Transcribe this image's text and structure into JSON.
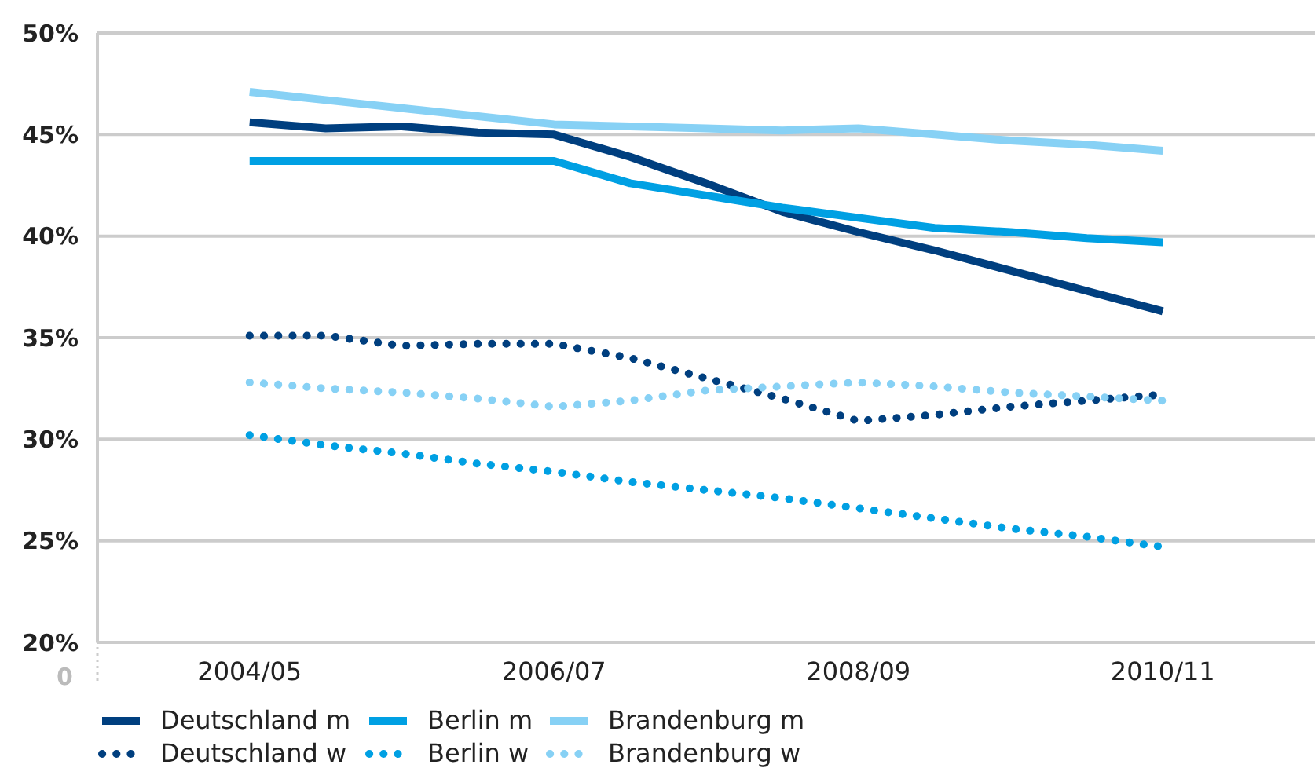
{
  "chart_data": {
    "type": "line",
    "categories": [
      "2004/05",
      null,
      null,
      null,
      "2006/07",
      null,
      null,
      null,
      "2008/09",
      null,
      null,
      null,
      "2010/11"
    ],
    "ylim": [
      20,
      50
    ],
    "yticks": [
      {
        "value": 20,
        "label": "20%"
      },
      {
        "value": 25,
        "label": "25%"
      },
      {
        "value": 30,
        "label": "30%"
      },
      {
        "value": 35,
        "label": "35%"
      },
      {
        "value": 40,
        "label": "40%"
      },
      {
        "value": 45,
        "label": "45%"
      },
      {
        "value": 50,
        "label": "50%"
      }
    ],
    "grid": "y",
    "legend": "bottom",
    "annotations": [
      "0"
    ],
    "series": [
      {
        "name": "Deutschland m",
        "color": "#003f7f",
        "line_style": "solid",
        "values": [
          45.6,
          45.3,
          45.4,
          45.1,
          45.0,
          43.9,
          42.6,
          41.2,
          40.2,
          39.3,
          38.3,
          37.3,
          36.3
        ]
      },
      {
        "name": "Berlin m",
        "color": "#00a0e3",
        "line_style": "solid",
        "values": [
          43.7,
          43.7,
          43.7,
          43.7,
          43.7,
          42.6,
          42.0,
          41.4,
          40.9,
          40.4,
          40.2,
          39.9,
          39.7
        ]
      },
      {
        "name": "Brandenburg m",
        "color": "#87d1f5",
        "line_style": "solid",
        "values": [
          47.1,
          46.7,
          46.3,
          45.9,
          45.5,
          45.4,
          45.3,
          45.2,
          45.3,
          45.0,
          44.7,
          44.5,
          44.2
        ]
      },
      {
        "name": "Deutschland w",
        "color": "#003f7f",
        "line_style": "dotted",
        "values": [
          35.1,
          35.1,
          34.6,
          34.7,
          34.7,
          34.0,
          33.0,
          32.0,
          30.9,
          31.2,
          31.6,
          31.9,
          32.2
        ]
      },
      {
        "name": "Berlin w",
        "color": "#00a0e3",
        "line_style": "dotted",
        "values": [
          30.2,
          29.7,
          29.3,
          28.8,
          28.4,
          27.9,
          27.5,
          27.1,
          26.6,
          26.1,
          25.6,
          25.2,
          24.7
        ]
      },
      {
        "name": "Brandenburg w",
        "color": "#87d1f5",
        "line_style": "dotted",
        "values": [
          32.8,
          32.5,
          32.3,
          32.0,
          31.6,
          31.9,
          32.4,
          32.6,
          32.8,
          32.6,
          32.3,
          32.1,
          31.9
        ]
      }
    ]
  }
}
